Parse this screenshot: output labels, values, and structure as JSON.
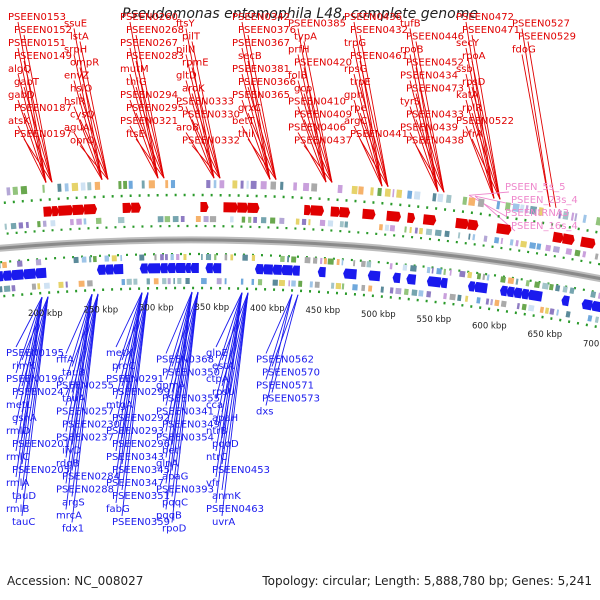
{
  "title": "Pseudomonas entomophila L48, complete genome",
  "footer": {
    "accession": "Accession: NC_008027",
    "topology": "Topology: circular; Length: 5,888,780 bp; Genes: 5,241"
  },
  "colors": {
    "forward": "#e00000",
    "reverse": "#1a1aee",
    "rna": "#ee88cc",
    "backbone": "#8a8a8a",
    "tick_dots": "#2a9a2a"
  },
  "scale_labels": [
    "200 kbp",
    "250 kbp",
    "300 kbp",
    "350 kbp",
    "400 kbp",
    "450 kbp",
    "500 kbp",
    "550 kbp",
    "600 kbp",
    "650 kbp",
    "700 kbp"
  ],
  "labels_forward": [
    "PSEEN0153",
    "PSEEN0152",
    "PSEEN0151",
    "PSEEN0149",
    "algQ",
    "gabT",
    "gabD",
    "PSEEN0187",
    "atsK",
    "PSEEN0197",
    "ssuE",
    "lstA",
    "srpH",
    "ompR",
    "envZ",
    "hslO",
    "hslR",
    "cysQ",
    "aguA",
    "oprQ",
    "PSEEN0260",
    "PSEEN0268",
    "PSEEN0267",
    "PSEEN0283",
    "mutM",
    "thiG",
    "PSEEN0294",
    "PSEEN0295",
    "PSEEN0321",
    "ftsE",
    "ftsY",
    "pilT",
    "pilN",
    "rpmE",
    "gltD",
    "aroK",
    "PSEEN0333",
    "PSEEN0330",
    "aroB",
    "PSEEN0332",
    "PSEEN0342",
    "PSEEN0376",
    "PSEEN0367",
    "secB",
    "PSEEN0381",
    "PSEEN0366",
    "PSEEN0365",
    "grxC",
    "betT",
    "thiI",
    "PSEEN0385",
    "typA",
    "prfH",
    "PSEEN0420",
    "folB",
    "gcp",
    "PSEEN0410",
    "PSEEN0409",
    "PSEEN0406",
    "PSEEN0437",
    "PSEEN0436",
    "PSEEN0432",
    "trpG",
    "PSEEN0461",
    "rpsG",
    "trpE",
    "gph",
    "rpe",
    "argC",
    "PSEEN0441",
    "tufB",
    "PSEEN0446",
    "rpoB",
    "PSEEN0452",
    "PSEEN0434",
    "PSEEN0473",
    "tyrS",
    "PSEEN0433",
    "PSEEN0439",
    "PSEEN0438",
    "PSEEN0472",
    "PSEEN0471",
    "secY",
    "rpoA",
    "ssb",
    "rpsD",
    "katA",
    "rplR",
    "PSEEN0522",
    "bfrA",
    "PSEEN0527",
    "PSEEN0529",
    "fdoG"
  ],
  "labels_rna": [
    "PSEEN_5s_5",
    "PSEEN_23s_4",
    "PSEENtRNA3",
    "PSEEN_16s_4"
  ],
  "labels_reverse": [
    "PSEEN0195",
    "rimK",
    "PSEEN0196",
    "PSEEN0247",
    "metL",
    "gshA",
    "rmlD",
    "PSEEN0201",
    "rmlC",
    "PSEEN0205",
    "rmlA",
    "tauD",
    "rmlB",
    "tauC",
    "rffA",
    "tauB",
    "PSEEN0255",
    "tauA",
    "PSEEN0257",
    "PSEEN0230",
    "PSEEN0237",
    "ilvD",
    "rdgB",
    "PSEEN0284",
    "PSEEN0288",
    "argS",
    "mrcA",
    "fdx1",
    "metX",
    "proC",
    "PSEEN0291",
    "PSEEN0299",
    "mtgA",
    "PSEEN0292",
    "PSEEN0293",
    "PSEEN0296",
    "PSEEN0343",
    "PSEEN0345",
    "PSEEN0347",
    "PSEEN0351",
    "fabG",
    "PSEEN0359",
    "PSEEN0368",
    "PSEEN0350",
    "gpmA",
    "PSEEN0355",
    "PSEEN0341",
    "PSEEN0349",
    "PSEEN0354",
    "betI",
    "glnA",
    "apaG",
    "PSEEN0393",
    "pqqC",
    "pqqB",
    "rpoD",
    "glpE",
    "estA",
    "ctpA",
    "rpsU",
    "cca",
    "apaH",
    "ntrB",
    "pqqD",
    "ntrC",
    "PSEEN0453",
    "vfr",
    "anmK",
    "PSEEN0463",
    "uvrA",
    "PSEEN0562",
    "PSEEN0570",
    "PSEEN0571",
    "PSEEN0573",
    "dxs"
  ]
}
